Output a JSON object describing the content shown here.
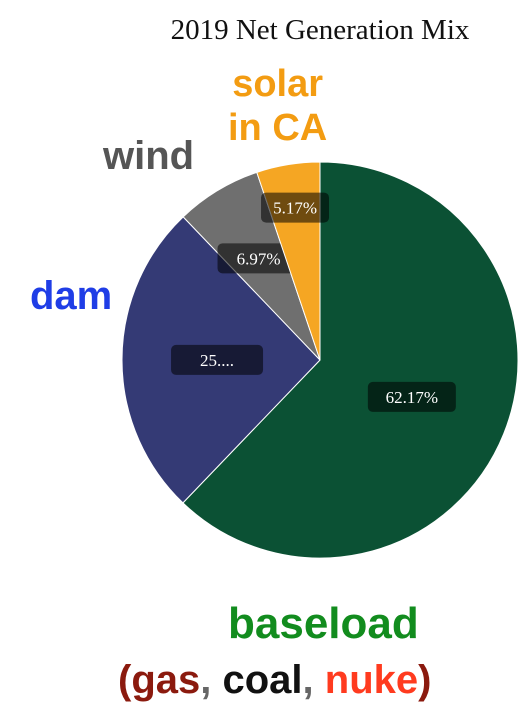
{
  "chart_data": {
    "type": "pie",
    "title": "2019 Net Generation Mix",
    "slices": [
      {
        "key": "baseload",
        "value": 62.17,
        "label": "62.17%",
        "color": "#0b5134"
      },
      {
        "key": "dam",
        "value": 25.69,
        "label": "25....",
        "color": "#343a75"
      },
      {
        "key": "wind",
        "value": 6.97,
        "label": "6.97%",
        "color": "#6f6f6f"
      },
      {
        "key": "solar",
        "value": 5.17,
        "label": "5.17%",
        "color": "#f5a623"
      }
    ]
  },
  "annotations": {
    "solar_line1": "solar",
    "solar_line2": "in CA",
    "wind": "wind",
    "dam": "dam",
    "baseload": "baseload",
    "fuels": {
      "open": "(",
      "gas": "gas",
      "sep1": ", ",
      "coal": "coal",
      "sep2": ", ",
      "nuke": "nuke",
      "close": ")"
    }
  }
}
